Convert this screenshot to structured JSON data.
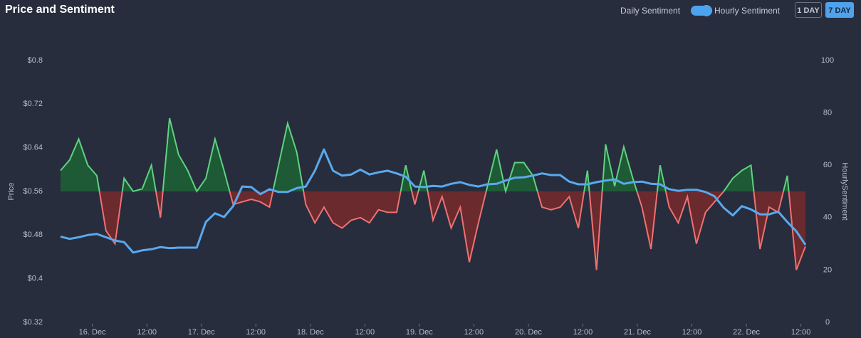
{
  "header": {
    "title": "Price and Sentiment",
    "toggle_left": "Daily Sentiment",
    "toggle_right": "Hourly Sentiment",
    "buttons": [
      "1 DAY",
      "7 DAY"
    ],
    "active_button": 1
  },
  "chart_data": {
    "type": "line",
    "x": [
      "15. Dec 17:00",
      "15. Dec 19:00",
      "15. Dec 21:00",
      "15. Dec 23:00",
      "16. Dec 01:00",
      "16. Dec 03:00",
      "16. Dec 05:00",
      "16. Dec 07:00",
      "16. Dec 09:00",
      "16. Dec 11:00",
      "16. Dec 13:00",
      "16. Dec 15:00",
      "16. Dec 17:00",
      "16. Dec 19:00",
      "16. Dec 21:00",
      "16. Dec 23:00",
      "17. Dec 01:00",
      "17. Dec 03:00",
      "17. Dec 05:00",
      "17. Dec 07:00",
      "17. Dec 09:00",
      "17. Dec 11:00",
      "17. Dec 13:00",
      "17. Dec 15:00",
      "17. Dec 17:00",
      "17. Dec 19:00",
      "17. Dec 21:00",
      "17. Dec 23:00",
      "18. Dec 01:00",
      "18. Dec 03:00",
      "18. Dec 05:00",
      "18. Dec 07:00",
      "18. Dec 09:00",
      "18. Dec 11:00",
      "18. Dec 13:00",
      "18. Dec 15:00",
      "18. Dec 17:00",
      "18. Dec 19:00",
      "18. Dec 21:00",
      "18. Dec 23:00",
      "19. Dec 01:00",
      "19. Dec 03:00",
      "19. Dec 05:00",
      "19. Dec 07:00",
      "19. Dec 09:00",
      "19. Dec 11:00",
      "19. Dec 13:00",
      "19. Dec 15:00",
      "19. Dec 17:00",
      "19. Dec 19:00",
      "19. Dec 21:00",
      "19. Dec 23:00",
      "20. Dec 01:00",
      "20. Dec 03:00",
      "20. Dec 05:00",
      "20. Dec 07:00",
      "20. Dec 09:00",
      "20. Dec 11:00",
      "20. Dec 13:00",
      "20. Dec 15:00",
      "20. Dec 17:00",
      "20. Dec 19:00",
      "20. Dec 21:00",
      "20. Dec 23:00",
      "21. Dec 01:00",
      "21. Dec 03:00",
      "21. Dec 05:00",
      "21. Dec 07:00",
      "21. Dec 09:00",
      "21. Dec 11:00",
      "21. Dec 13:00",
      "21. Dec 15:00",
      "21. Dec 17:00",
      "21. Dec 19:00",
      "21. Dec 21:00",
      "21. Dec 23:00",
      "22. Dec 01:00",
      "22. Dec 03:00",
      "22. Dec 05:00",
      "22. Dec 07:00",
      "22. Dec 09:00",
      "22. Dec 11:00",
      "22. Dec 13:00"
    ],
    "xticks": [
      {
        "value": "16. Dec 00:00",
        "label": "16. Dec"
      },
      {
        "value": "16. Dec 12:00",
        "label": "12:00"
      },
      {
        "value": "17. Dec 00:00",
        "label": "17. Dec"
      },
      {
        "value": "17. Dec 12:00",
        "label": "12:00"
      },
      {
        "value": "18. Dec 00:00",
        "label": "18. Dec"
      },
      {
        "value": "18. Dec 12:00",
        "label": "12:00"
      },
      {
        "value": "19. Dec 00:00",
        "label": "19. Dec"
      },
      {
        "value": "19. Dec 12:00",
        "label": "12:00"
      },
      {
        "value": "20. Dec 00:00",
        "label": "20. Dec"
      },
      {
        "value": "20. Dec 12:00",
        "label": "12:00"
      },
      {
        "value": "21. Dec 00:00",
        "label": "21. Dec"
      },
      {
        "value": "21. Dec 12:00",
        "label": "12:00"
      },
      {
        "value": "22. Dec 00:00",
        "label": "22. Dec"
      },
      {
        "value": "22. Dec 12:00",
        "label": "12:00"
      }
    ],
    "y_label": "Price",
    "y2_label": "HourlySentiment",
    "ylim": [
      0.32,
      0.8
    ],
    "yticks": [
      {
        "value": 0.32,
        "label": "$0.32"
      },
      {
        "value": 0.4,
        "label": "$0.4"
      },
      {
        "value": 0.48,
        "label": "$0.48"
      },
      {
        "value": 0.56,
        "label": "$0.56"
      },
      {
        "value": 0.64,
        "label": "$0.64"
      },
      {
        "value": 0.72,
        "label": "$0.72"
      },
      {
        "value": 0.8,
        "label": "$0.8"
      }
    ],
    "y2lim": [
      0,
      100
    ],
    "y2ticks": [
      0,
      20,
      40,
      60,
      80,
      100
    ],
    "series": [
      {
        "color": "#5aa9ee",
        "values": [
          0.477,
          0.473,
          0.476,
          0.48,
          0.482,
          0.476,
          0.47,
          0.467,
          0.448,
          0.452,
          0.454,
          0.458,
          0.456,
          0.457,
          0.457,
          0.457,
          0.504,
          0.52,
          0.513,
          0.533,
          0.569,
          0.568,
          0.555,
          0.564,
          0.559,
          0.559,
          0.566,
          0.569,
          0.598,
          0.637,
          0.598,
          0.589,
          0.591,
          0.6,
          0.591,
          0.595,
          0.598,
          0.593,
          0.587,
          0.569,
          0.568,
          0.57,
          0.569,
          0.574,
          0.577,
          0.572,
          0.569,
          0.573,
          0.574,
          0.58,
          0.585,
          0.586,
          0.589,
          0.593,
          0.59,
          0.59,
          0.578,
          0.573,
          0.573,
          0.577,
          0.58,
          0.582,
          0.574,
          0.577,
          0.578,
          0.574,
          0.573,
          0.564,
          0.561,
          0.563,
          0.563,
          0.559,
          0.551,
          0.53,
          0.516,
          0.533,
          0.527,
          0.518,
          0.518,
          0.523,
          0.504,
          0.487,
          0.462
        ]
      },
      {
        "axis": "y2",
        "color": "#5fd27f",
        "below_color": "#f07171",
        "fill": "#1e5a36",
        "below_fill": "#6a2a2e",
        "values": [
          58,
          62,
          70,
          60,
          56,
          35,
          30,
          55,
          50,
          51,
          60,
          40,
          78,
          64,
          58,
          50,
          55,
          70,
          58,
          45,
          46,
          47,
          46,
          44,
          60,
          76,
          65,
          45,
          38,
          44,
          38,
          36,
          39,
          40,
          38,
          43,
          42,
          42,
          60,
          45,
          58,
          39,
          48,
          36,
          44,
          23,
          38,
          52,
          66,
          50,
          61,
          61,
          56,
          44,
          43,
          44,
          48,
          36,
          58,
          20,
          68,
          52,
          67,
          55,
          44,
          28,
          60,
          44,
          38,
          48,
          30,
          42,
          46,
          50,
          55,
          58,
          60,
          28,
          44,
          42,
          56,
          20,
          29
        ]
      }
    ]
  }
}
